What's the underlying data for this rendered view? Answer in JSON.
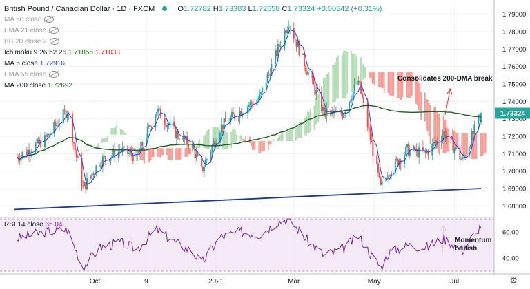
{
  "header": {
    "title": "British Pound / Canadian Dollar · 1D · FXCM",
    "o_label": "O",
    "o_val": "1.72782",
    "h_label": "H",
    "h_val": "1.73383",
    "l_label": "L",
    "l_val": "1.72658",
    "c_label": "C",
    "c_val": "1.73324",
    "change": "+0.00542 (+0.31%)"
  },
  "indicators": [
    {
      "label": "MA 50 close",
      "visible": false
    },
    {
      "label": "EMA 21 close",
      "visible": false
    },
    {
      "label": "BB 20 close 2",
      "visible": false
    },
    {
      "label": "Ichimoku 9 26 52 26",
      "visible": true,
      "v1": "1.71855",
      "v2": "1.71033",
      "c1": "#1b7a1b",
      "c2": "#c62828"
    },
    {
      "label": "MA 5 close",
      "visible": true,
      "v1": "1.72916",
      "c1": "#1e40ff"
    },
    {
      "label": "EMA 55 close",
      "visible": false
    },
    {
      "label": "MA 200 close",
      "visible": true,
      "v1": "1.72692",
      "c1": "#1b5e20"
    }
  ],
  "annotations": {
    "main": "Consolidates 200-DMA break",
    "rsi": "Momentum bullish"
  },
  "rsi_label": "RSI 14 close",
  "rsi_value": "65.04",
  "last_price_tag": "1.73324",
  "colors": {
    "up": "#26a69a",
    "down": "#ef5350",
    "ma5": "#1e40ff",
    "ma200": "#1b5e20",
    "trendline": "#1a3a8f",
    "cloud_bull": "#a5d6a7",
    "cloud_bear": "#f28b82",
    "rsi": "#7b1fa2"
  },
  "chart_data": [
    {
      "type": "candlestick",
      "title": "British Pound / Canadian Dollar · 1D · FXCM",
      "x_ticks": [
        "Oct",
        "9",
        "2021",
        "Mar",
        "May",
        "Jul"
      ],
      "y_ticks": [
        "1.68000",
        "1.69000",
        "1.70000",
        "1.71000",
        "1.72000",
        "1.73000",
        "1.74000",
        "1.75000",
        "1.76000",
        "1.77000",
        "1.78000",
        "1.79000"
      ],
      "ylim": [
        1.675,
        1.795
      ],
      "trendline": {
        "from": {
          "x": "2020-08-01",
          "y": 1.678
        },
        "to": {
          "x": "2021-07-21",
          "y": 1.69
        }
      },
      "close_path": [
        {
          "x": "2020-08-03",
          "close": 1.708
        },
        {
          "x": "2020-08-24",
          "close": 1.718
        },
        {
          "x": "2020-09-10",
          "close": 1.735
        },
        {
          "x": "2020-09-22",
          "close": 1.69
        },
        {
          "x": "2020-10-05",
          "close": 1.706
        },
        {
          "x": "2020-10-20",
          "close": 1.712
        },
        {
          "x": "2020-11-02",
          "close": 1.708
        },
        {
          "x": "2020-11-17",
          "close": 1.735
        },
        {
          "x": "2020-12-01",
          "close": 1.722
        },
        {
          "x": "2020-12-14",
          "close": 1.714
        },
        {
          "x": "2020-12-21",
          "close": 1.7
        },
        {
          "x": "2021-01-04",
          "close": 1.725
        },
        {
          "x": "2021-01-20",
          "close": 1.735
        },
        {
          "x": "2021-02-03",
          "close": 1.742
        },
        {
          "x": "2021-02-17",
          "close": 1.77
        },
        {
          "x": "2021-02-25",
          "close": 1.786
        },
        {
          "x": "2021-03-10",
          "close": 1.76
        },
        {
          "x": "2021-03-24",
          "close": 1.733
        },
        {
          "x": "2021-04-07",
          "close": 1.733
        },
        {
          "x": "2021-04-19",
          "close": 1.752
        },
        {
          "x": "2021-04-29",
          "close": 1.715
        },
        {
          "x": "2021-05-06",
          "close": 1.69
        },
        {
          "x": "2021-05-12",
          "close": 1.7
        },
        {
          "x": "2021-05-26",
          "close": 1.712
        },
        {
          "x": "2021-06-09",
          "close": 1.71
        },
        {
          "x": "2021-06-23",
          "close": 1.722
        },
        {
          "x": "2021-07-07",
          "close": 1.706
        },
        {
          "x": "2021-07-21",
          "close": 1.73324
        }
      ]
    },
    {
      "type": "line",
      "title": "RSI 14 close",
      "y_ticks": [
        "40.00",
        "60.00"
      ],
      "ylim": [
        30,
        70
      ],
      "levels": [
        30,
        70
      ],
      "values": [
        {
          "x": "2020-08-03",
          "y": 55
        },
        {
          "x": "2020-08-24",
          "y": 60
        },
        {
          "x": "2020-09-10",
          "y": 62
        },
        {
          "x": "2020-09-22",
          "y": 33
        },
        {
          "x": "2020-10-05",
          "y": 48
        },
        {
          "x": "2020-10-20",
          "y": 52
        },
        {
          "x": "2020-11-02",
          "y": 47
        },
        {
          "x": "2020-11-17",
          "y": 62
        },
        {
          "x": "2020-12-01",
          "y": 52
        },
        {
          "x": "2020-12-14",
          "y": 45
        },
        {
          "x": "2020-12-21",
          "y": 36
        },
        {
          "x": "2021-01-04",
          "y": 56
        },
        {
          "x": "2021-01-20",
          "y": 60
        },
        {
          "x": "2021-02-03",
          "y": 58
        },
        {
          "x": "2021-02-17",
          "y": 68
        },
        {
          "x": "2021-02-25",
          "y": 70
        },
        {
          "x": "2021-03-10",
          "y": 55
        },
        {
          "x": "2021-03-24",
          "y": 42
        },
        {
          "x": "2021-04-07",
          "y": 47
        },
        {
          "x": "2021-04-19",
          "y": 57
        },
        {
          "x": "2021-04-29",
          "y": 42
        },
        {
          "x": "2021-05-06",
          "y": 33
        },
        {
          "x": "2021-05-12",
          "y": 44
        },
        {
          "x": "2021-05-26",
          "y": 50
        },
        {
          "x": "2021-06-09",
          "y": 48
        },
        {
          "x": "2021-06-23",
          "y": 55
        },
        {
          "x": "2021-07-07",
          "y": 46
        },
        {
          "x": "2021-07-21",
          "y": 65.04
        }
      ]
    }
  ]
}
